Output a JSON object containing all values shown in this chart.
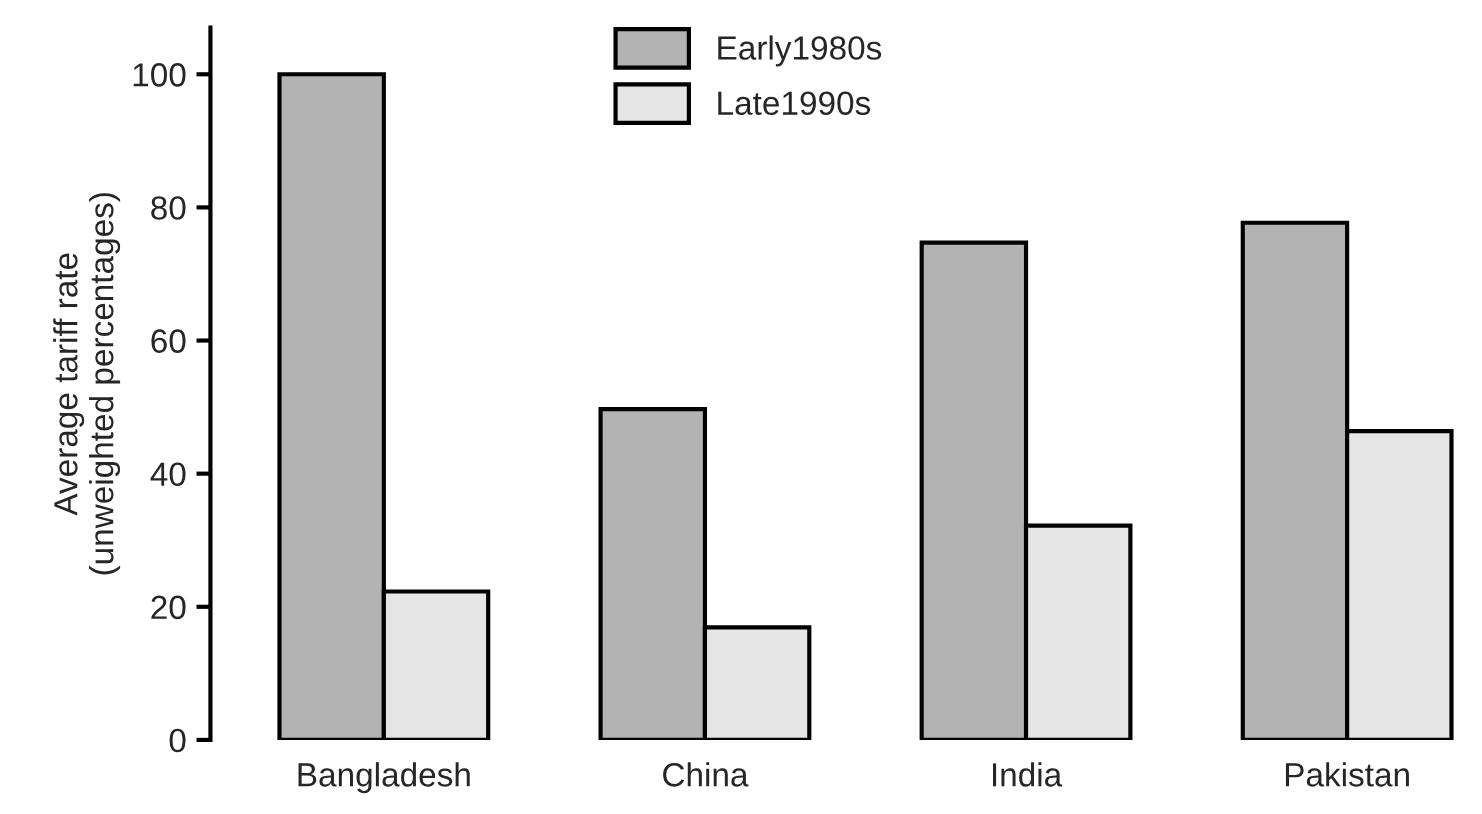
{
  "chart_data": {
    "type": "bar",
    "ylabel": "Average tariff rate\n(unweighted percentages)",
    "categories": [
      "Bangladesh",
      "China",
      "India",
      "Pakistan"
    ],
    "series": [
      {
        "name": "Early1980s",
        "color": "#b3b3b3",
        "values": [
          100,
          49.7,
          74.7,
          77.7
        ]
      },
      {
        "name": "Late1990s",
        "color": "#e5e5e5",
        "values": [
          22.3,
          16.9,
          32.2,
          46.4
        ]
      }
    ],
    "ylim": [
      0,
      107
    ],
    "yticks": [
      0,
      20,
      40,
      60,
      80,
      100
    ],
    "grid": false,
    "legend": "top"
  }
}
